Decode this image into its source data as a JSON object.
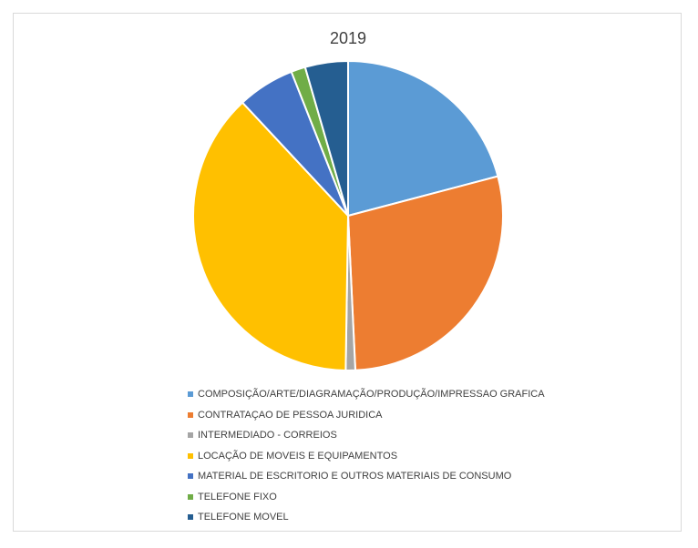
{
  "chart_data": {
    "type": "pie",
    "title": "2019",
    "legend_position": "bottom",
    "series": [
      {
        "values": [
          21.0,
          28.5,
          1.0,
          38.0,
          6.0,
          1.5,
          4.5
        ]
      }
    ],
    "categories": [
      "COMPOSIÇÃO/ARTE/DIAGRAMAÇÃO/PRODUÇÃO/IMPRESSAO GRAFICA",
      "CONTRATAÇAO DE PESSOA JURIDICA",
      "INTERMEDIADO - CORREIOS",
      "LOCAÇÃO DE MOVEIS E EQUIPAMENTOS",
      "MATERIAL DE ESCRITORIO E OUTROS MATERIAIS DE CONSUMO",
      "TELEFONE FIXO",
      "TELEFONE MOVEL"
    ],
    "colors": [
      "#5b9bd5",
      "#ed7d31",
      "#a5a5a5",
      "#ffc000",
      "#4472c4",
      "#70ad47",
      "#255e91"
    ]
  }
}
